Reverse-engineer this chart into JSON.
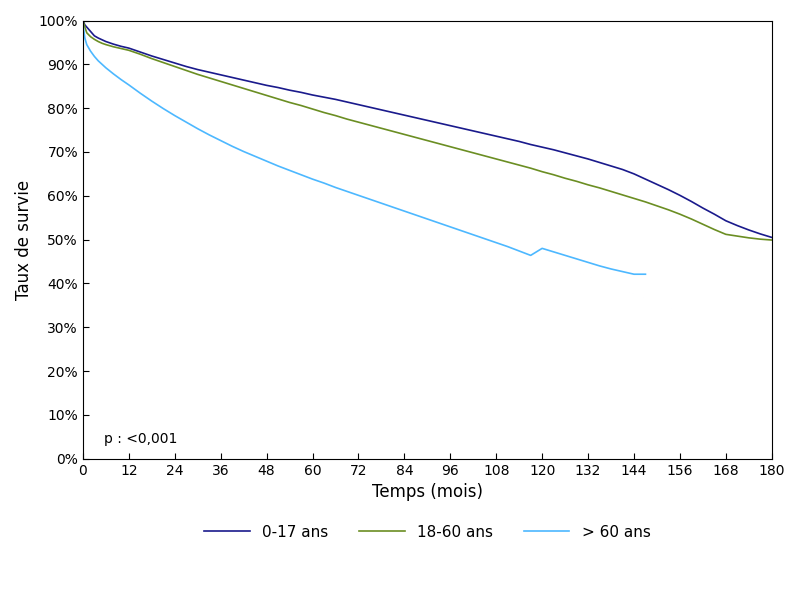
{
  "title": "",
  "xlabel": "Temps (mois)",
  "ylabel": "Taux de survie",
  "xlim": [
    0,
    180
  ],
  "ylim": [
    0,
    1.0
  ],
  "xticks": [
    0,
    12,
    24,
    36,
    48,
    60,
    72,
    84,
    96,
    108,
    120,
    132,
    144,
    156,
    168,
    180
  ],
  "yticks": [
    0.0,
    0.1,
    0.2,
    0.3,
    0.4,
    0.5,
    0.6,
    0.7,
    0.8,
    0.9,
    1.0
  ],
  "pvalue_text": "p : <0,001",
  "legend_labels": [
    "0-17 ans",
    "18-60 ans",
    "> 60 ans"
  ],
  "line_colors": [
    "#1a1a8c",
    "#6b8e23",
    "#4db8ff"
  ],
  "background_color": "#ffffff",
  "curve_0_17_x": [
    0,
    0.5,
    1,
    2,
    3,
    4,
    5,
    6,
    8,
    10,
    12,
    15,
    18,
    21,
    24,
    27,
    30,
    33,
    36,
    39,
    42,
    45,
    48,
    51,
    54,
    57,
    60,
    63,
    66,
    69,
    72,
    75,
    78,
    81,
    84,
    87,
    90,
    93,
    96,
    99,
    102,
    105,
    108,
    111,
    114,
    117,
    120,
    123,
    126,
    129,
    132,
    135,
    138,
    141,
    144,
    147,
    150,
    153,
    156,
    159,
    162,
    165,
    168,
    171,
    174,
    177,
    180
  ],
  "curve_0_17_y": [
    1.0,
    0.99,
    0.985,
    0.975,
    0.965,
    0.96,
    0.956,
    0.952,
    0.946,
    0.941,
    0.937,
    0.928,
    0.919,
    0.911,
    0.903,
    0.895,
    0.888,
    0.882,
    0.876,
    0.87,
    0.864,
    0.858,
    0.852,
    0.847,
    0.841,
    0.836,
    0.83,
    0.825,
    0.82,
    0.814,
    0.808,
    0.802,
    0.796,
    0.79,
    0.784,
    0.778,
    0.772,
    0.766,
    0.76,
    0.754,
    0.748,
    0.742,
    0.736,
    0.73,
    0.724,
    0.717,
    0.711,
    0.705,
    0.698,
    0.691,
    0.684,
    0.676,
    0.668,
    0.66,
    0.65,
    0.638,
    0.626,
    0.614,
    0.601,
    0.587,
    0.572,
    0.558,
    0.543,
    0.532,
    0.522,
    0.513,
    0.505
  ],
  "curve_18_60_x": [
    0,
    0.5,
    1,
    2,
    3,
    4,
    5,
    6,
    8,
    10,
    12,
    15,
    18,
    21,
    24,
    27,
    30,
    33,
    36,
    39,
    42,
    45,
    48,
    51,
    54,
    57,
    60,
    63,
    66,
    69,
    72,
    75,
    78,
    81,
    84,
    87,
    90,
    93,
    96,
    99,
    102,
    105,
    108,
    111,
    114,
    117,
    120,
    123,
    126,
    129,
    132,
    135,
    138,
    141,
    144,
    147,
    150,
    153,
    156,
    159,
    162,
    165,
    168,
    171,
    174,
    177,
    180
  ],
  "curve_18_60_y": [
    1.0,
    0.985,
    0.972,
    0.963,
    0.957,
    0.952,
    0.948,
    0.945,
    0.94,
    0.936,
    0.932,
    0.923,
    0.913,
    0.904,
    0.895,
    0.886,
    0.877,
    0.869,
    0.861,
    0.853,
    0.845,
    0.837,
    0.829,
    0.821,
    0.813,
    0.806,
    0.798,
    0.79,
    0.783,
    0.775,
    0.768,
    0.761,
    0.754,
    0.747,
    0.74,
    0.733,
    0.726,
    0.719,
    0.712,
    0.705,
    0.698,
    0.691,
    0.684,
    0.677,
    0.67,
    0.663,
    0.655,
    0.648,
    0.64,
    0.633,
    0.625,
    0.618,
    0.61,
    0.602,
    0.594,
    0.586,
    0.577,
    0.568,
    0.558,
    0.547,
    0.535,
    0.523,
    0.512,
    0.508,
    0.504,
    0.501,
    0.499
  ],
  "curve_60plus_x": [
    0,
    0.5,
    1,
    2,
    3,
    4,
    5,
    6,
    8,
    10,
    12,
    15,
    18,
    21,
    24,
    27,
    30,
    33,
    36,
    39,
    42,
    45,
    48,
    51,
    54,
    57,
    60,
    63,
    66,
    69,
    72,
    75,
    78,
    81,
    84,
    87,
    90,
    93,
    96,
    99,
    102,
    105,
    108,
    111,
    114,
    117,
    120,
    123,
    126,
    129,
    132,
    135,
    138,
    141,
    144,
    147
  ],
  "curve_60plus_y": [
    0.992,
    0.96,
    0.945,
    0.93,
    0.918,
    0.908,
    0.9,
    0.892,
    0.878,
    0.865,
    0.853,
    0.834,
    0.816,
    0.799,
    0.783,
    0.768,
    0.753,
    0.739,
    0.726,
    0.713,
    0.701,
    0.69,
    0.679,
    0.668,
    0.658,
    0.648,
    0.638,
    0.629,
    0.619,
    0.61,
    0.601,
    0.592,
    0.583,
    0.574,
    0.565,
    0.556,
    0.547,
    0.538,
    0.529,
    0.52,
    0.511,
    0.502,
    0.493,
    0.484,
    0.474,
    0.464,
    0.48,
    0.472,
    0.464,
    0.456,
    0.448,
    0.44,
    0.433,
    0.427,
    0.421,
    0.421
  ]
}
